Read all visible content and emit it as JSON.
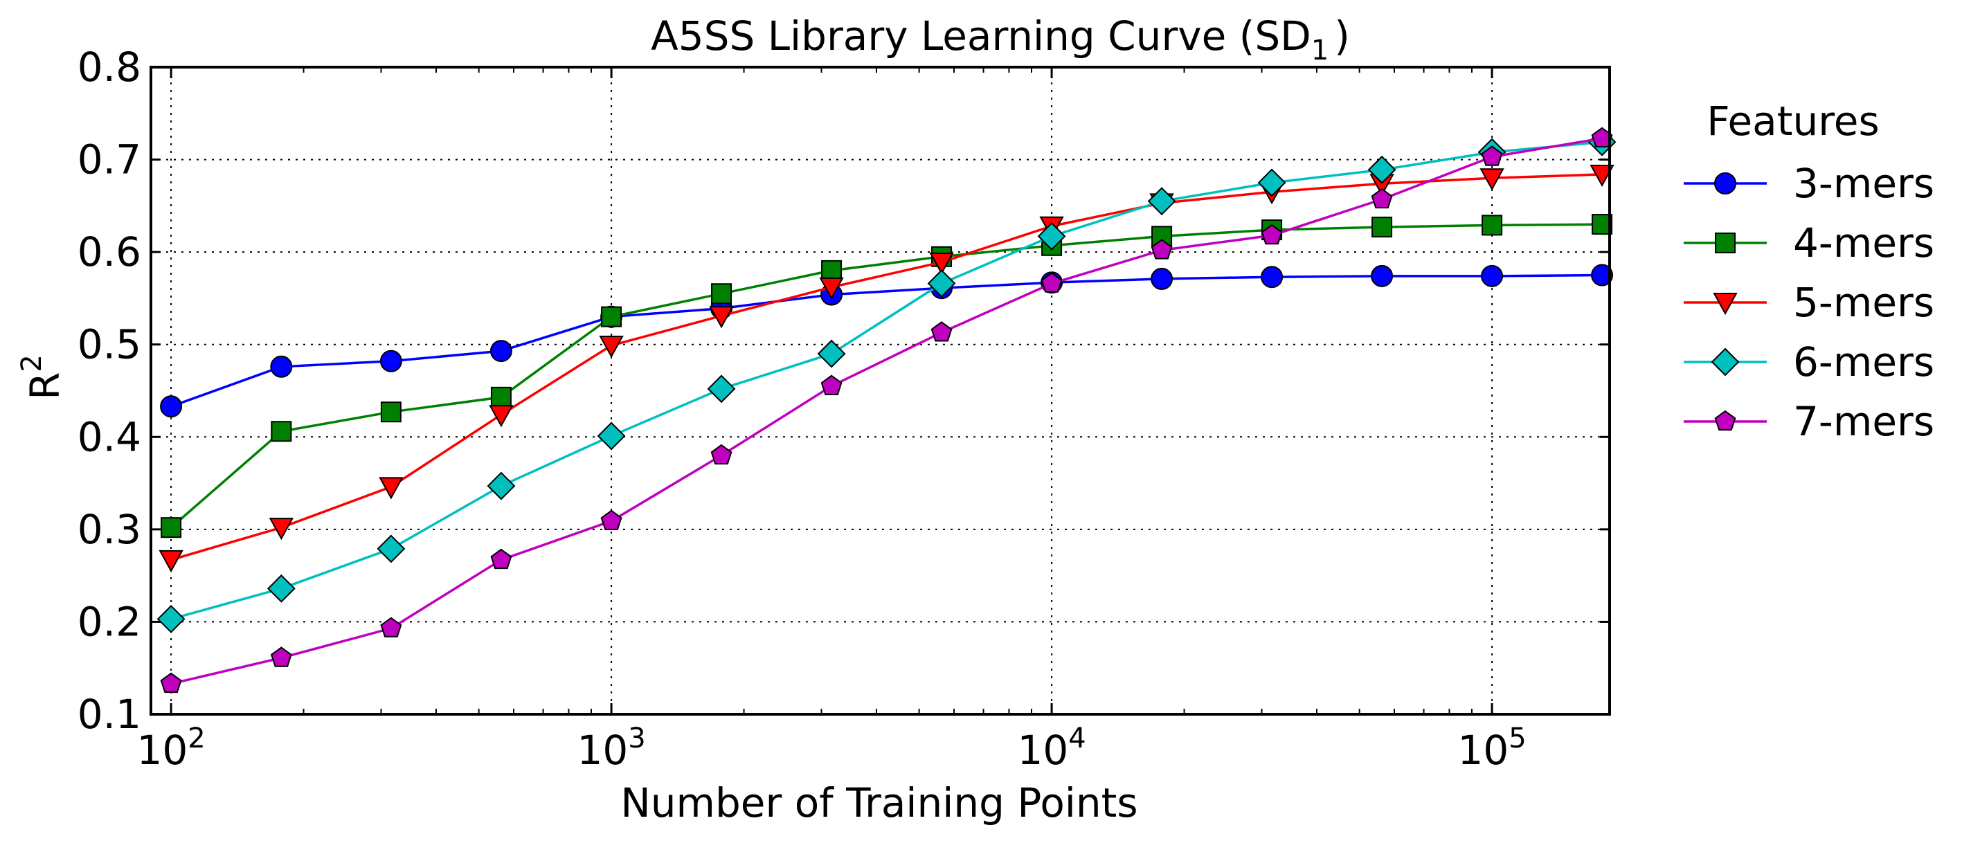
{
  "chart_data": {
    "type": "line",
    "title_main": "A5SS Library Learning Curve (SD",
    "title_sub": "1",
    "title_end": ")",
    "xlabel": "Number of Training Points",
    "ylabel_main": "R",
    "ylabel_sup": "2",
    "x_scale": "log",
    "xlim": [
      90,
      185000
    ],
    "ylim": [
      0.1,
      0.8
    ],
    "grid": true,
    "x_ticks": [
      {
        "value": 100,
        "base": "10",
        "exp": "2"
      },
      {
        "value": 1000,
        "base": "10",
        "exp": "3"
      },
      {
        "value": 10000,
        "base": "10",
        "exp": "4"
      },
      {
        "value": 100000,
        "base": "10",
        "exp": "5"
      }
    ],
    "y_ticks": [
      {
        "value": 0.1,
        "label": "0.1"
      },
      {
        "value": 0.2,
        "label": "0.2"
      },
      {
        "value": 0.3,
        "label": "0.3"
      },
      {
        "value": 0.4,
        "label": "0.4"
      },
      {
        "value": 0.5,
        "label": "0.5"
      },
      {
        "value": 0.6,
        "label": "0.6"
      },
      {
        "value": 0.7,
        "label": "0.7"
      },
      {
        "value": 0.8,
        "label": "0.8"
      }
    ],
    "legend": {
      "title": "Features",
      "placement": "right"
    },
    "x": [
      100,
      178,
      316,
      562,
      1000,
      1778,
      3162,
      5623,
      10000,
      17783,
      31623,
      56234,
      100000,
      177828
    ],
    "series": [
      {
        "name": "3-mers",
        "color": "#0000ff",
        "marker": "circle",
        "values": [
          0.433,
          0.476,
          0.482,
          0.493,
          0.53,
          0.539,
          0.554,
          0.561,
          0.567,
          0.571,
          0.573,
          0.574,
          0.574,
          0.575
        ]
      },
      {
        "name": "4-mers",
        "color": "#008000",
        "marker": "square",
        "values": [
          0.302,
          0.406,
          0.427,
          0.443,
          0.53,
          0.555,
          0.58,
          0.595,
          0.607,
          0.617,
          0.624,
          0.627,
          0.629,
          0.63
        ]
      },
      {
        "name": "5-mers",
        "color": "#ff0000",
        "marker": "triangle-down",
        "values": [
          0.267,
          0.302,
          0.346,
          0.424,
          0.499,
          0.531,
          0.562,
          0.589,
          0.628,
          0.653,
          0.665,
          0.674,
          0.68,
          0.684
        ]
      },
      {
        "name": "6-mers",
        "color": "#00bfbf",
        "marker": "diamond",
        "values": [
          0.203,
          0.236,
          0.279,
          0.347,
          0.401,
          0.452,
          0.49,
          0.566,
          0.617,
          0.655,
          0.675,
          0.689,
          0.708,
          0.719
        ]
      },
      {
        "name": "7-mers",
        "color": "#bf00bf",
        "marker": "pentagon",
        "values": [
          0.133,
          0.161,
          0.193,
          0.267,
          0.309,
          0.38,
          0.455,
          0.513,
          0.566,
          0.602,
          0.618,
          0.657,
          0.703,
          0.723
        ]
      }
    ]
  }
}
